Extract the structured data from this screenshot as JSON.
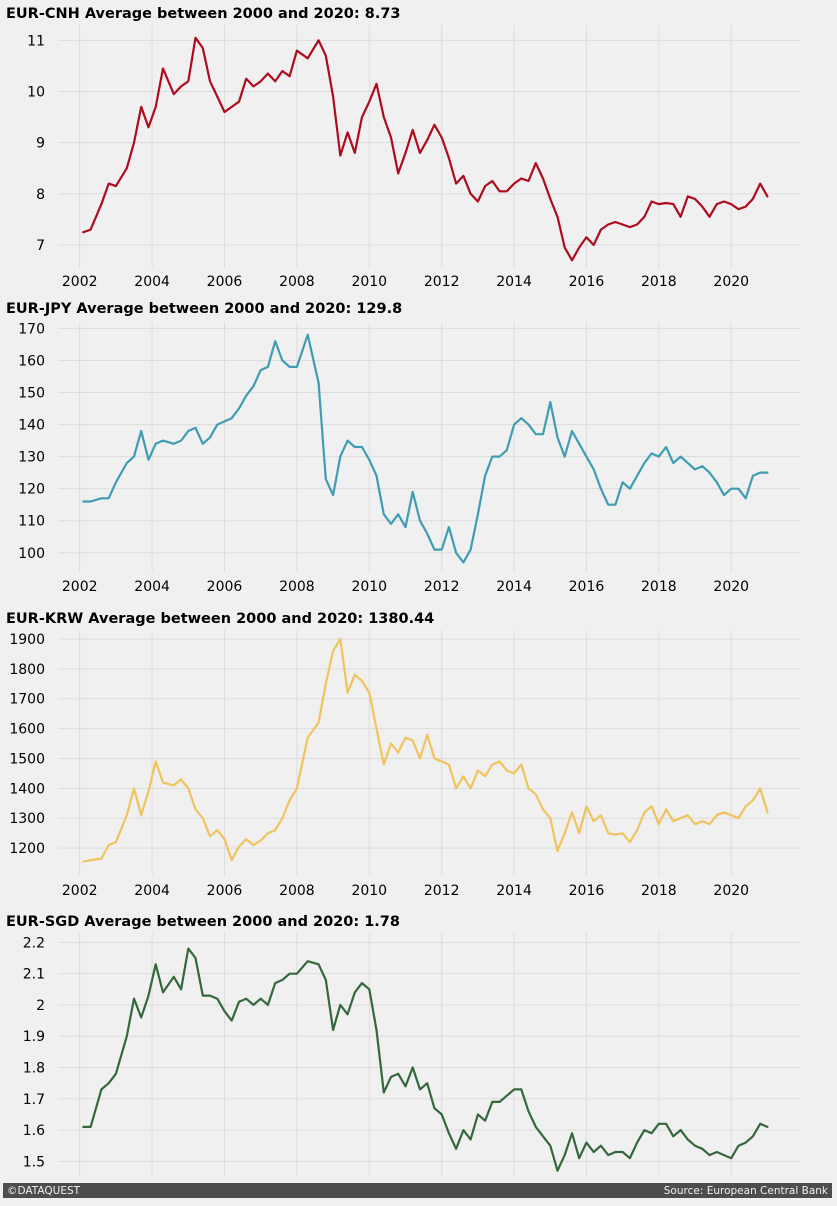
{
  "footer": {
    "left": "©DATAQUEST",
    "right": "Source: European Central Bank"
  },
  "chart_data": [
    {
      "type": "line",
      "title": "EUR-CNH Average between 2000 and 2020: 8.73",
      "color": "#af0b1e",
      "xlabel": "",
      "ylabel": "",
      "xlim": [
        2001.4,
        2021.9
      ],
      "ylim": [
        6.55,
        11.3
      ],
      "xticks": [
        2002,
        2004,
        2006,
        2008,
        2010,
        2012,
        2014,
        2016,
        2018,
        2020
      ],
      "yticks": [
        7,
        8,
        9,
        10,
        11
      ],
      "grid": true,
      "x": [
        2002.1,
        2002.3,
        2002.6,
        2002.8,
        2003.0,
        2003.3,
        2003.5,
        2003.7,
        2003.9,
        2004.1,
        2004.3,
        2004.6,
        2004.8,
        2005.0,
        2005.2,
        2005.4,
        2005.6,
        2005.8,
        2006.0,
        2006.2,
        2006.4,
        2006.6,
        2006.8,
        2007.0,
        2007.2,
        2007.4,
        2007.6,
        2007.8,
        2008.0,
        2008.3,
        2008.6,
        2008.8,
        2009.0,
        2009.2,
        2009.4,
        2009.6,
        2009.8,
        2010.0,
        2010.2,
        2010.4,
        2010.6,
        2010.8,
        2011.0,
        2011.2,
        2011.4,
        2011.6,
        2011.8,
        2012.0,
        2012.2,
        2012.4,
        2012.6,
        2012.8,
        2013.0,
        2013.2,
        2013.4,
        2013.6,
        2013.8,
        2014.0,
        2014.2,
        2014.4,
        2014.6,
        2014.8,
        2015.0,
        2015.2,
        2015.4,
        2015.6,
        2015.8,
        2016.0,
        2016.2,
        2016.4,
        2016.6,
        2016.8,
        2017.0,
        2017.2,
        2017.4,
        2017.6,
        2017.8,
        2018.0,
        2018.2,
        2018.4,
        2018.6,
        2018.8,
        2019.0,
        2019.2,
        2019.4,
        2019.6,
        2019.8,
        2020.0,
        2020.2,
        2020.4,
        2020.6,
        2020.8,
        2021.0
      ],
      "y": [
        7.25,
        7.3,
        7.8,
        8.2,
        8.15,
        8.5,
        9.0,
        9.7,
        9.3,
        9.7,
        10.45,
        9.95,
        10.1,
        10.2,
        11.05,
        10.85,
        10.2,
        9.9,
        9.6,
        9.7,
        9.8,
        10.25,
        10.1,
        10.2,
        10.35,
        10.2,
        10.4,
        10.3,
        10.8,
        10.65,
        11.0,
        10.7,
        9.9,
        8.75,
        9.2,
        8.8,
        9.5,
        9.8,
        10.15,
        9.5,
        9.1,
        8.4,
        8.8,
        9.25,
        8.8,
        9.05,
        9.35,
        9.1,
        8.7,
        8.2,
        8.35,
        8.0,
        7.85,
        8.15,
        8.25,
        8.05,
        8.05,
        8.2,
        8.3,
        8.25,
        8.6,
        8.3,
        7.9,
        7.55,
        6.95,
        6.7,
        6.95,
        7.15,
        7.0,
        7.3,
        7.4,
        7.45,
        7.4,
        7.35,
        7.4,
        7.55,
        7.85,
        7.8,
        7.82,
        7.8,
        7.55,
        7.95,
        7.9,
        7.75,
        7.55,
        7.8,
        7.85,
        7.8,
        7.7,
        7.75,
        7.9,
        8.2,
        7.95
      ]
    },
    {
      "type": "line",
      "title": "EUR-JPY Average between 2000 and 2020: 129.8",
      "color": "#3f9cb2",
      "xlabel": "",
      "ylabel": "",
      "xlim": [
        2001.4,
        2021.9
      ],
      "ylim": [
        94,
        172
      ],
      "xticks": [
        2002,
        2004,
        2006,
        2008,
        2010,
        2012,
        2014,
        2016,
        2018,
        2020
      ],
      "yticks": [
        100,
        110,
        120,
        130,
        140,
        150,
        160,
        170
      ],
      "grid": true,
      "x": [
        2002.1,
        2002.3,
        2002.6,
        2002.8,
        2003.0,
        2003.3,
        2003.5,
        2003.7,
        2003.9,
        2004.1,
        2004.3,
        2004.6,
        2004.8,
        2005.0,
        2005.2,
        2005.4,
        2005.6,
        2005.8,
        2006.0,
        2006.2,
        2006.4,
        2006.6,
        2006.8,
        2007.0,
        2007.2,
        2007.4,
        2007.6,
        2007.8,
        2008.0,
        2008.3,
        2008.6,
        2008.8,
        2009.0,
        2009.2,
        2009.4,
        2009.6,
        2009.8,
        2010.0,
        2010.2,
        2010.4,
        2010.6,
        2010.8,
        2011.0,
        2011.2,
        2011.4,
        2011.6,
        2011.8,
        2012.0,
        2012.2,
        2012.4,
        2012.6,
        2012.8,
        2013.0,
        2013.2,
        2013.4,
        2013.6,
        2013.8,
        2014.0,
        2014.2,
        2014.4,
        2014.6,
        2014.8,
        2015.0,
        2015.2,
        2015.4,
        2015.6,
        2015.8,
        2016.0,
        2016.2,
        2016.4,
        2016.6,
        2016.8,
        2017.0,
        2017.2,
        2017.4,
        2017.6,
        2017.8,
        2018.0,
        2018.2,
        2018.4,
        2018.6,
        2018.8,
        2019.0,
        2019.2,
        2019.4,
        2019.6,
        2019.8,
        2020.0,
        2020.2,
        2020.4,
        2020.6,
        2020.8,
        2021.0
      ],
      "y": [
        116,
        116,
        117,
        117,
        122,
        128,
        130,
        138,
        129,
        134,
        135,
        134,
        135,
        138,
        139,
        134,
        136,
        140,
        141,
        142,
        145,
        149,
        152,
        157,
        158,
        166,
        160,
        158,
        158,
        168,
        153,
        123,
        118,
        130,
        135,
        133,
        133,
        129,
        124,
        112,
        109,
        112,
        108,
        119,
        110,
        106,
        101,
        101,
        108,
        100,
        97,
        101,
        112,
        124,
        130,
        130,
        132,
        140,
        142,
        140,
        137,
        137,
        147,
        136,
        130,
        138,
        134,
        130,
        126,
        120,
        115,
        115,
        122,
        120,
        124,
        128,
        131,
        130,
        133,
        128,
        130,
        128,
        126,
        127,
        125,
        122,
        118,
        120,
        120,
        117,
        124,
        125,
        125
      ]
    },
    {
      "type": "line",
      "title": "EUR-KRW Average between 2000 and 2020: 1380.44",
      "color": "#f0c35e",
      "xlabel": "",
      "ylabel": "",
      "xlim": [
        2001.4,
        2021.9
      ],
      "ylim": [
        1110,
        1930
      ],
      "xticks": [
        2002,
        2004,
        2006,
        2008,
        2010,
        2012,
        2014,
        2016,
        2018,
        2020
      ],
      "yticks": [
        1200,
        1300,
        1400,
        1500,
        1600,
        1700,
        1800,
        1900
      ],
      "grid": true,
      "x": [
        2002.1,
        2002.3,
        2002.6,
        2002.8,
        2003.0,
        2003.3,
        2003.5,
        2003.7,
        2003.9,
        2004.1,
        2004.3,
        2004.6,
        2004.8,
        2005.0,
        2005.2,
        2005.4,
        2005.6,
        2005.8,
        2006.0,
        2006.2,
        2006.4,
        2006.6,
        2006.8,
        2007.0,
        2007.2,
        2007.4,
        2007.6,
        2007.8,
        2008.0,
        2008.3,
        2008.6,
        2008.8,
        2009.0,
        2009.2,
        2009.4,
        2009.6,
        2009.8,
        2010.0,
        2010.2,
        2010.4,
        2010.6,
        2010.8,
        2011.0,
        2011.2,
        2011.4,
        2011.6,
        2011.8,
        2012.0,
        2012.2,
        2012.4,
        2012.6,
        2012.8,
        2013.0,
        2013.2,
        2013.4,
        2013.6,
        2013.8,
        2014.0,
        2014.2,
        2014.4,
        2014.6,
        2014.8,
        2015.0,
        2015.2,
        2015.4,
        2015.6,
        2015.8,
        2016.0,
        2016.2,
        2016.4,
        2016.6,
        2016.8,
        2017.0,
        2017.2,
        2017.4,
        2017.6,
        2017.8,
        2018.0,
        2018.2,
        2018.4,
        2018.6,
        2018.8,
        2019.0,
        2019.2,
        2019.4,
        2019.6,
        2019.8,
        2020.0,
        2020.2,
        2020.4,
        2020.6,
        2020.8,
        2021.0
      ],
      "y": [
        1155,
        1160,
        1165,
        1210,
        1220,
        1310,
        1400,
        1310,
        1390,
        1490,
        1420,
        1410,
        1430,
        1400,
        1330,
        1300,
        1240,
        1260,
        1230,
        1160,
        1205,
        1230,
        1210,
        1225,
        1250,
        1260,
        1300,
        1360,
        1400,
        1570,
        1620,
        1750,
        1860,
        1900,
        1720,
        1780,
        1760,
        1720,
        1600,
        1480,
        1550,
        1520,
        1570,
        1560,
        1500,
        1580,
        1500,
        1490,
        1480,
        1400,
        1440,
        1400,
        1460,
        1440,
        1480,
        1490,
        1460,
        1450,
        1480,
        1400,
        1380,
        1330,
        1300,
        1190,
        1250,
        1320,
        1250,
        1340,
        1290,
        1310,
        1250,
        1245,
        1250,
        1220,
        1260,
        1320,
        1340,
        1280,
        1330,
        1290,
        1300,
        1310,
        1280,
        1290,
        1280,
        1310,
        1320,
        1310,
        1300,
        1340,
        1360,
        1400,
        1320
      ]
    },
    {
      "type": "line",
      "title": "EUR-SGD Average between 2000 and 2020: 1.78",
      "color": "#34683c",
      "xlabel": "",
      "ylabel": "",
      "xlim": [
        2001.4,
        2021.9
      ],
      "ylim": [
        1.45,
        2.23
      ],
      "xticks": [
        2002,
        2004,
        2006,
        2008,
        2010,
        2012,
        2014,
        2016,
        2018,
        2020
      ],
      "yticks": [
        1.5,
        1.6,
        1.7,
        1.8,
        1.9,
        2.0,
        2.1,
        2.2
      ],
      "grid": true,
      "x": [
        2002.1,
        2002.3,
        2002.6,
        2002.8,
        2003.0,
        2003.3,
        2003.5,
        2003.7,
        2003.9,
        2004.1,
        2004.3,
        2004.6,
        2004.8,
        2005.0,
        2005.2,
        2005.4,
        2005.6,
        2005.8,
        2006.0,
        2006.2,
        2006.4,
        2006.6,
        2006.8,
        2007.0,
        2007.2,
        2007.4,
        2007.6,
        2007.8,
        2008.0,
        2008.3,
        2008.6,
        2008.8,
        2009.0,
        2009.2,
        2009.4,
        2009.6,
        2009.8,
        2010.0,
        2010.2,
        2010.4,
        2010.6,
        2010.8,
        2011.0,
        2011.2,
        2011.4,
        2011.6,
        2011.8,
        2012.0,
        2012.2,
        2012.4,
        2012.6,
        2012.8,
        2013.0,
        2013.2,
        2013.4,
        2013.6,
        2013.8,
        2014.0,
        2014.2,
        2014.4,
        2014.6,
        2014.8,
        2015.0,
        2015.2,
        2015.4,
        2015.6,
        2015.8,
        2016.0,
        2016.2,
        2016.4,
        2016.6,
        2016.8,
        2017.0,
        2017.2,
        2017.4,
        2017.6,
        2017.8,
        2018.0,
        2018.2,
        2018.4,
        2018.6,
        2018.8,
        2019.0,
        2019.2,
        2019.4,
        2019.6,
        2019.8,
        2020.0,
        2020.2,
        2020.4,
        2020.6,
        2020.8,
        2021.0
      ],
      "y": [
        1.61,
        1.61,
        1.73,
        1.75,
        1.78,
        1.9,
        2.02,
        1.96,
        2.03,
        2.13,
        2.04,
        2.09,
        2.05,
        2.18,
        2.15,
        2.03,
        2.03,
        2.02,
        1.98,
        1.95,
        2.01,
        2.02,
        2.0,
        2.02,
        2.0,
        2.07,
        2.08,
        2.1,
        2.1,
        2.14,
        2.13,
        2.08,
        1.92,
        2.0,
        1.97,
        2.04,
        2.07,
        2.05,
        1.92,
        1.72,
        1.77,
        1.78,
        1.74,
        1.8,
        1.73,
        1.75,
        1.67,
        1.65,
        1.59,
        1.54,
        1.6,
        1.57,
        1.65,
        1.63,
        1.69,
        1.69,
        1.71,
        1.73,
        1.73,
        1.66,
        1.61,
        1.58,
        1.55,
        1.47,
        1.52,
        1.59,
        1.51,
        1.56,
        1.53,
        1.55,
        1.52,
        1.53,
        1.53,
        1.51,
        1.56,
        1.6,
        1.59,
        1.62,
        1.62,
        1.58,
        1.6,
        1.57,
        1.55,
        1.54,
        1.52,
        1.53,
        1.52,
        1.51,
        1.55,
        1.56,
        1.58,
        1.62,
        1.61
      ]
    }
  ]
}
